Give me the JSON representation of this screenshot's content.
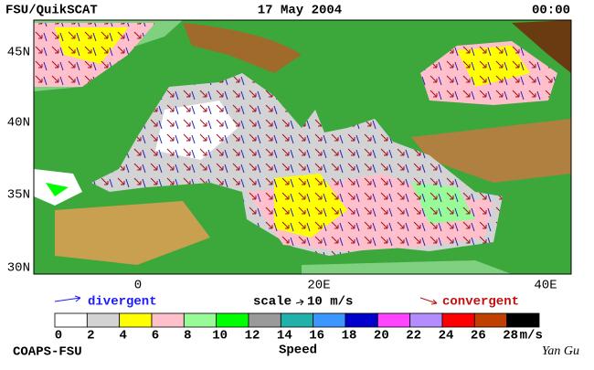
{
  "header": {
    "left": "FSU/QuikSCAT",
    "center": "17 May 2004",
    "right": "00:00"
  },
  "map": {
    "lat_labels": [
      "45N",
      "40N",
      "35N",
      "30N"
    ],
    "lon_labels": [
      "0",
      "20E",
      "40E"
    ]
  },
  "legend": {
    "divergent": "divergent",
    "scale": "scale",
    "scale_value": "10 m/s",
    "convergent": "convergent"
  },
  "colorbar": {
    "ticks": [
      0,
      2,
      4,
      6,
      8,
      10,
      12,
      14,
      16,
      18,
      20,
      22,
      24,
      26,
      28
    ],
    "unit": "m/s",
    "label": "Speed",
    "colors": [
      "#ffffff",
      "#d3d3d3",
      "#ffff00",
      "#ffc0cb",
      "#98fb98",
      "#00ff00",
      "#9a9a9a",
      "#20b2aa",
      "#3c96ff",
      "#0000cd",
      "#ff44ff",
      "#b48cff",
      "#ff0000",
      "#c04000",
      "#000000"
    ]
  },
  "footer": {
    "left": "COAPS-FSU",
    "right": "Yan Gu"
  }
}
